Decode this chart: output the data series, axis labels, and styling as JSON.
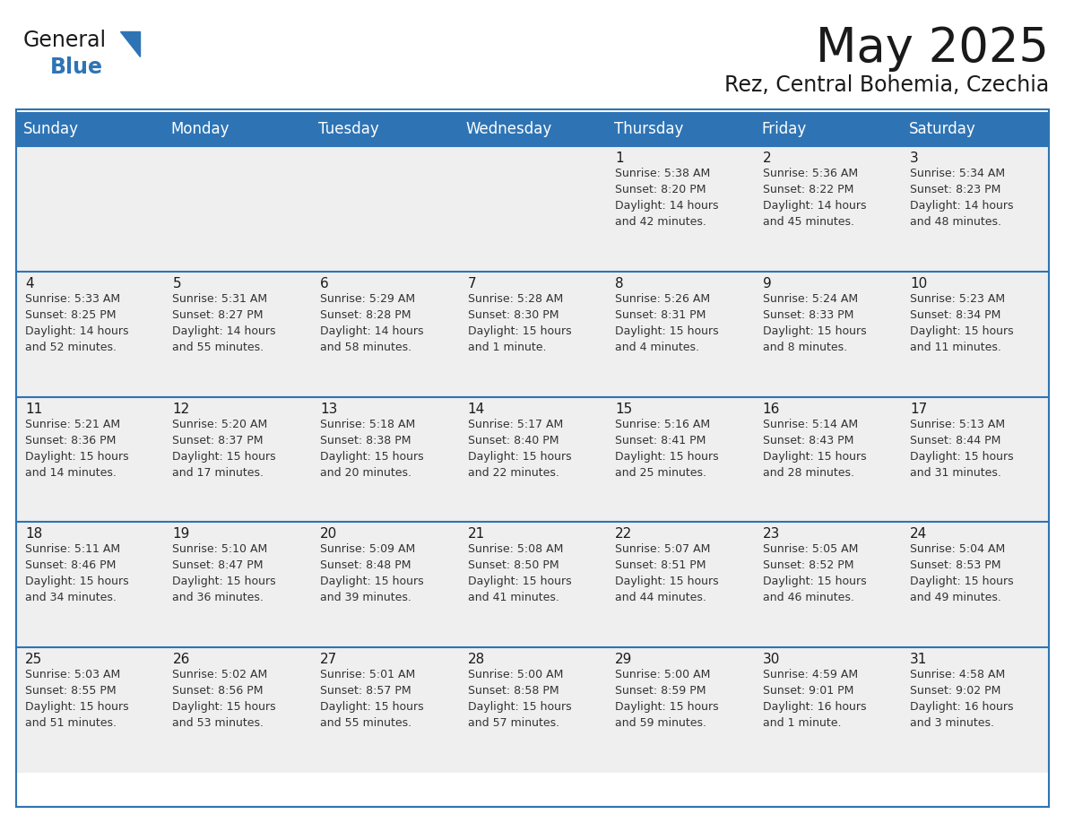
{
  "title": "May 2025",
  "subtitle": "Rez, Central Bohemia, Czechia",
  "header_bg": "#2E74B5",
  "header_text": "#FFFFFF",
  "cell_bg": "#EFEFEF",
  "row_separator_color": "#2E74B5",
  "day_names": [
    "Sunday",
    "Monday",
    "Tuesday",
    "Wednesday",
    "Thursday",
    "Friday",
    "Saturday"
  ],
  "weeks": [
    [
      {
        "day": "",
        "info": ""
      },
      {
        "day": "",
        "info": ""
      },
      {
        "day": "",
        "info": ""
      },
      {
        "day": "",
        "info": ""
      },
      {
        "day": "1",
        "info": "Sunrise: 5:38 AM\nSunset: 8:20 PM\nDaylight: 14 hours\nand 42 minutes."
      },
      {
        "day": "2",
        "info": "Sunrise: 5:36 AM\nSunset: 8:22 PM\nDaylight: 14 hours\nand 45 minutes."
      },
      {
        "day": "3",
        "info": "Sunrise: 5:34 AM\nSunset: 8:23 PM\nDaylight: 14 hours\nand 48 minutes."
      }
    ],
    [
      {
        "day": "4",
        "info": "Sunrise: 5:33 AM\nSunset: 8:25 PM\nDaylight: 14 hours\nand 52 minutes."
      },
      {
        "day": "5",
        "info": "Sunrise: 5:31 AM\nSunset: 8:27 PM\nDaylight: 14 hours\nand 55 minutes."
      },
      {
        "day": "6",
        "info": "Sunrise: 5:29 AM\nSunset: 8:28 PM\nDaylight: 14 hours\nand 58 minutes."
      },
      {
        "day": "7",
        "info": "Sunrise: 5:28 AM\nSunset: 8:30 PM\nDaylight: 15 hours\nand 1 minute."
      },
      {
        "day": "8",
        "info": "Sunrise: 5:26 AM\nSunset: 8:31 PM\nDaylight: 15 hours\nand 4 minutes."
      },
      {
        "day": "9",
        "info": "Sunrise: 5:24 AM\nSunset: 8:33 PM\nDaylight: 15 hours\nand 8 minutes."
      },
      {
        "day": "10",
        "info": "Sunrise: 5:23 AM\nSunset: 8:34 PM\nDaylight: 15 hours\nand 11 minutes."
      }
    ],
    [
      {
        "day": "11",
        "info": "Sunrise: 5:21 AM\nSunset: 8:36 PM\nDaylight: 15 hours\nand 14 minutes."
      },
      {
        "day": "12",
        "info": "Sunrise: 5:20 AM\nSunset: 8:37 PM\nDaylight: 15 hours\nand 17 minutes."
      },
      {
        "day": "13",
        "info": "Sunrise: 5:18 AM\nSunset: 8:38 PM\nDaylight: 15 hours\nand 20 minutes."
      },
      {
        "day": "14",
        "info": "Sunrise: 5:17 AM\nSunset: 8:40 PM\nDaylight: 15 hours\nand 22 minutes."
      },
      {
        "day": "15",
        "info": "Sunrise: 5:16 AM\nSunset: 8:41 PM\nDaylight: 15 hours\nand 25 minutes."
      },
      {
        "day": "16",
        "info": "Sunrise: 5:14 AM\nSunset: 8:43 PM\nDaylight: 15 hours\nand 28 minutes."
      },
      {
        "day": "17",
        "info": "Sunrise: 5:13 AM\nSunset: 8:44 PM\nDaylight: 15 hours\nand 31 minutes."
      }
    ],
    [
      {
        "day": "18",
        "info": "Sunrise: 5:11 AM\nSunset: 8:46 PM\nDaylight: 15 hours\nand 34 minutes."
      },
      {
        "day": "19",
        "info": "Sunrise: 5:10 AM\nSunset: 8:47 PM\nDaylight: 15 hours\nand 36 minutes."
      },
      {
        "day": "20",
        "info": "Sunrise: 5:09 AM\nSunset: 8:48 PM\nDaylight: 15 hours\nand 39 minutes."
      },
      {
        "day": "21",
        "info": "Sunrise: 5:08 AM\nSunset: 8:50 PM\nDaylight: 15 hours\nand 41 minutes."
      },
      {
        "day": "22",
        "info": "Sunrise: 5:07 AM\nSunset: 8:51 PM\nDaylight: 15 hours\nand 44 minutes."
      },
      {
        "day": "23",
        "info": "Sunrise: 5:05 AM\nSunset: 8:52 PM\nDaylight: 15 hours\nand 46 minutes."
      },
      {
        "day": "24",
        "info": "Sunrise: 5:04 AM\nSunset: 8:53 PM\nDaylight: 15 hours\nand 49 minutes."
      }
    ],
    [
      {
        "day": "25",
        "info": "Sunrise: 5:03 AM\nSunset: 8:55 PM\nDaylight: 15 hours\nand 51 minutes."
      },
      {
        "day": "26",
        "info": "Sunrise: 5:02 AM\nSunset: 8:56 PM\nDaylight: 15 hours\nand 53 minutes."
      },
      {
        "day": "27",
        "info": "Sunrise: 5:01 AM\nSunset: 8:57 PM\nDaylight: 15 hours\nand 55 minutes."
      },
      {
        "day": "28",
        "info": "Sunrise: 5:00 AM\nSunset: 8:58 PM\nDaylight: 15 hours\nand 57 minutes."
      },
      {
        "day": "29",
        "info": "Sunrise: 5:00 AM\nSunset: 8:59 PM\nDaylight: 15 hours\nand 59 minutes."
      },
      {
        "day": "30",
        "info": "Sunrise: 4:59 AM\nSunset: 9:01 PM\nDaylight: 16 hours\nand 1 minute."
      },
      {
        "day": "31",
        "info": "Sunrise: 4:58 AM\nSunset: 9:02 PM\nDaylight: 16 hours\nand 3 minutes."
      }
    ]
  ],
  "title_fontsize": 38,
  "subtitle_fontsize": 17,
  "dayname_fontsize": 12,
  "daynum_fontsize": 11,
  "info_fontsize": 9,
  "logo_general_fontsize": 17,
  "logo_blue_fontsize": 17
}
